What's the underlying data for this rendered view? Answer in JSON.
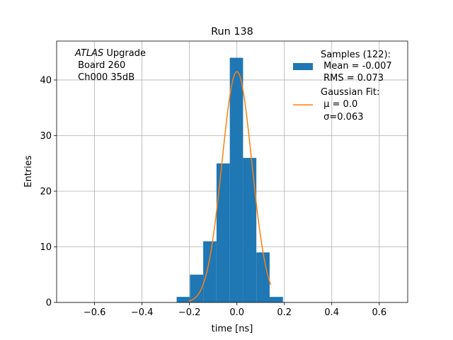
{
  "chart_data": {
    "type": "bar",
    "title": "Run 138",
    "xlabel": "time [ns]",
    "ylabel": "Entries",
    "xlim": [
      -0.76,
      0.72
    ],
    "ylim": [
      0,
      47
    ],
    "grid": true,
    "legend_position": "top-right",
    "xticks": [
      -0.6,
      -0.4,
      -0.2,
      0.0,
      0.2,
      0.4,
      0.6
    ],
    "xtick_labels": [
      "−0.6",
      "−0.4",
      "−0.2",
      "0.0",
      "0.2",
      "0.4",
      "0.6"
    ],
    "yticks": [
      0,
      10,
      20,
      30,
      40
    ],
    "ytick_labels": [
      "0",
      "10",
      "20",
      "30",
      "40"
    ],
    "annotation": {
      "italic": "ATLAS",
      "line1_rest": " Upgrade",
      "line2": " Board 260",
      "line3": " Ch000 35dB"
    },
    "histogram": {
      "name": "Samples (122):",
      "stat_lines": [
        " Mean = -0.007",
        " RMS = 0.073"
      ],
      "color": "#1f77b4",
      "bin_edges": [
        -0.254,
        -0.198,
        -0.142,
        -0.086,
        -0.03,
        0.026,
        0.082,
        0.138,
        0.194
      ],
      "counts": [
        1,
        5,
        11,
        25,
        44,
        26,
        9,
        1
      ]
    },
    "fit": {
      "name": "Gaussian Fit:",
      "mu_line": " μ = 0.0",
      "sigma_line": " σ=0.063",
      "color": "#ff7f0e",
      "amplitude": 41.5,
      "mu": 0.0,
      "sigma": 0.063,
      "x_range": [
        -0.203,
        0.143
      ]
    }
  }
}
